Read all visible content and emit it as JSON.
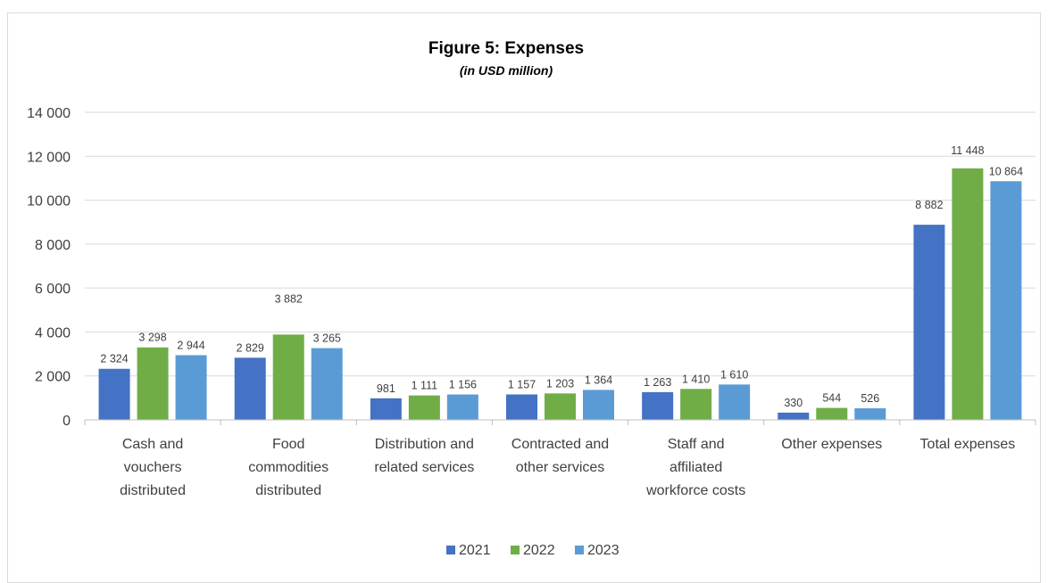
{
  "chart_data": {
    "type": "bar",
    "title": "Figure 5: Expenses",
    "subtitle": "(in USD million)",
    "xlabel": "",
    "ylabel": "",
    "ylim": [
      0,
      14000
    ],
    "yticks": [
      0,
      2000,
      4000,
      6000,
      8000,
      10000,
      12000,
      14000
    ],
    "ytick_labels": [
      "0",
      "2 000",
      "4 000",
      "6 000",
      "8 000",
      "10 000",
      "12 000",
      "14 000"
    ],
    "grid": true,
    "legend_position": "bottom",
    "categories": [
      [
        "Cash and",
        "vouchers",
        "distributed"
      ],
      [
        "Food",
        "commodities",
        "distributed"
      ],
      [
        "Distribution and",
        "related services"
      ],
      [
        "Contracted and",
        "other services"
      ],
      [
        "Staff and",
        "affiliated",
        "workforce costs"
      ],
      [
        "Other expenses"
      ],
      [
        "Total expenses"
      ]
    ],
    "series": [
      {
        "name": "2021",
        "color": "#4472c4",
        "values": [
          2324,
          2829,
          981,
          1157,
          1263,
          330,
          8882
        ],
        "labels": [
          "2 324",
          "2 829",
          "981",
          "1 157",
          "1 263",
          "330",
          "8 882"
        ]
      },
      {
        "name": "2022",
        "color": "#70ad47",
        "values": [
          3298,
          3882,
          1111,
          1203,
          1410,
          544,
          11448
        ],
        "labels": [
          "3 298",
          "3 882",
          "1 111",
          "1 203",
          "1 410",
          "544",
          "11 448"
        ]
      },
      {
        "name": "2023",
        "color": "#5b9bd5",
        "values": [
          2944,
          3265,
          1156,
          1364,
          1610,
          526,
          10864
        ],
        "labels": [
          "2 944",
          "3 265",
          "1 156",
          "1 364",
          "1 610",
          "526",
          "10 864"
        ]
      }
    ]
  }
}
